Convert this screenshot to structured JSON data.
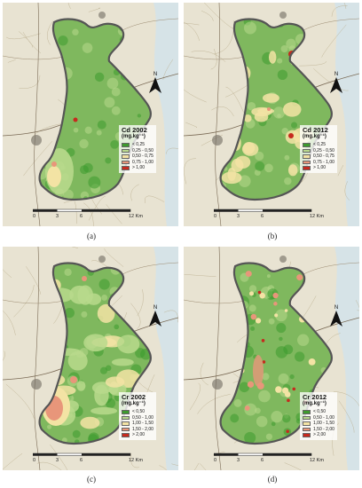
{
  "panels": [
    {
      "id": "a",
      "label": "(a)",
      "legend_title": "Cd 2002",
      "legend_unit": "(mg.kg⁻¹)",
      "classes": [
        "< 0,25",
        "0,25 - 0,50",
        "0,50 - 0,75",
        "0,75 - 1,00",
        "> 1,00"
      ],
      "hotspots": "low"
    },
    {
      "id": "b",
      "label": "(b)",
      "legend_title": "Cd 2012",
      "legend_unit": "(mg.kg⁻¹)",
      "classes": [
        "< 0,25",
        "0,25 - 0,50",
        "0,50 - 0,75",
        "0,75 - 1,00",
        "> 1,00"
      ],
      "hotspots": "medium"
    },
    {
      "id": "c",
      "label": "(c)",
      "legend_title": "Cr 2002",
      "legend_unit": "(mg.kg⁻¹)",
      "classes": [
        "< 0,50",
        "0,50 - 1,00",
        "1,00 - 1,50",
        "1,50 - 2,00",
        "> 2,00"
      ],
      "hotspots": "high"
    },
    {
      "id": "d",
      "label": "(d)",
      "legend_title": "Cr 2012",
      "legend_unit": "(mg.kg⁻¹)",
      "classes": [
        "< 0,50",
        "0,50 - 1,00",
        "1,00 - 1,50",
        "1,50 - 2,00",
        "> 2,00"
      ],
      "hotspots": "scattered"
    }
  ],
  "class_colors": [
    "#3d9a2d",
    "#b8d98c",
    "#f3e3a4",
    "#e8967a",
    "#c62a1e"
  ],
  "scale": {
    "ticks": [
      "0",
      "3",
      "6",
      "12 Km"
    ]
  },
  "north_label": "N",
  "colors": {
    "basemap": "#e8e3d2",
    "study_area": "#7fb85e",
    "outline": "#555555",
    "coast_water": "#cfe3f0"
  }
}
